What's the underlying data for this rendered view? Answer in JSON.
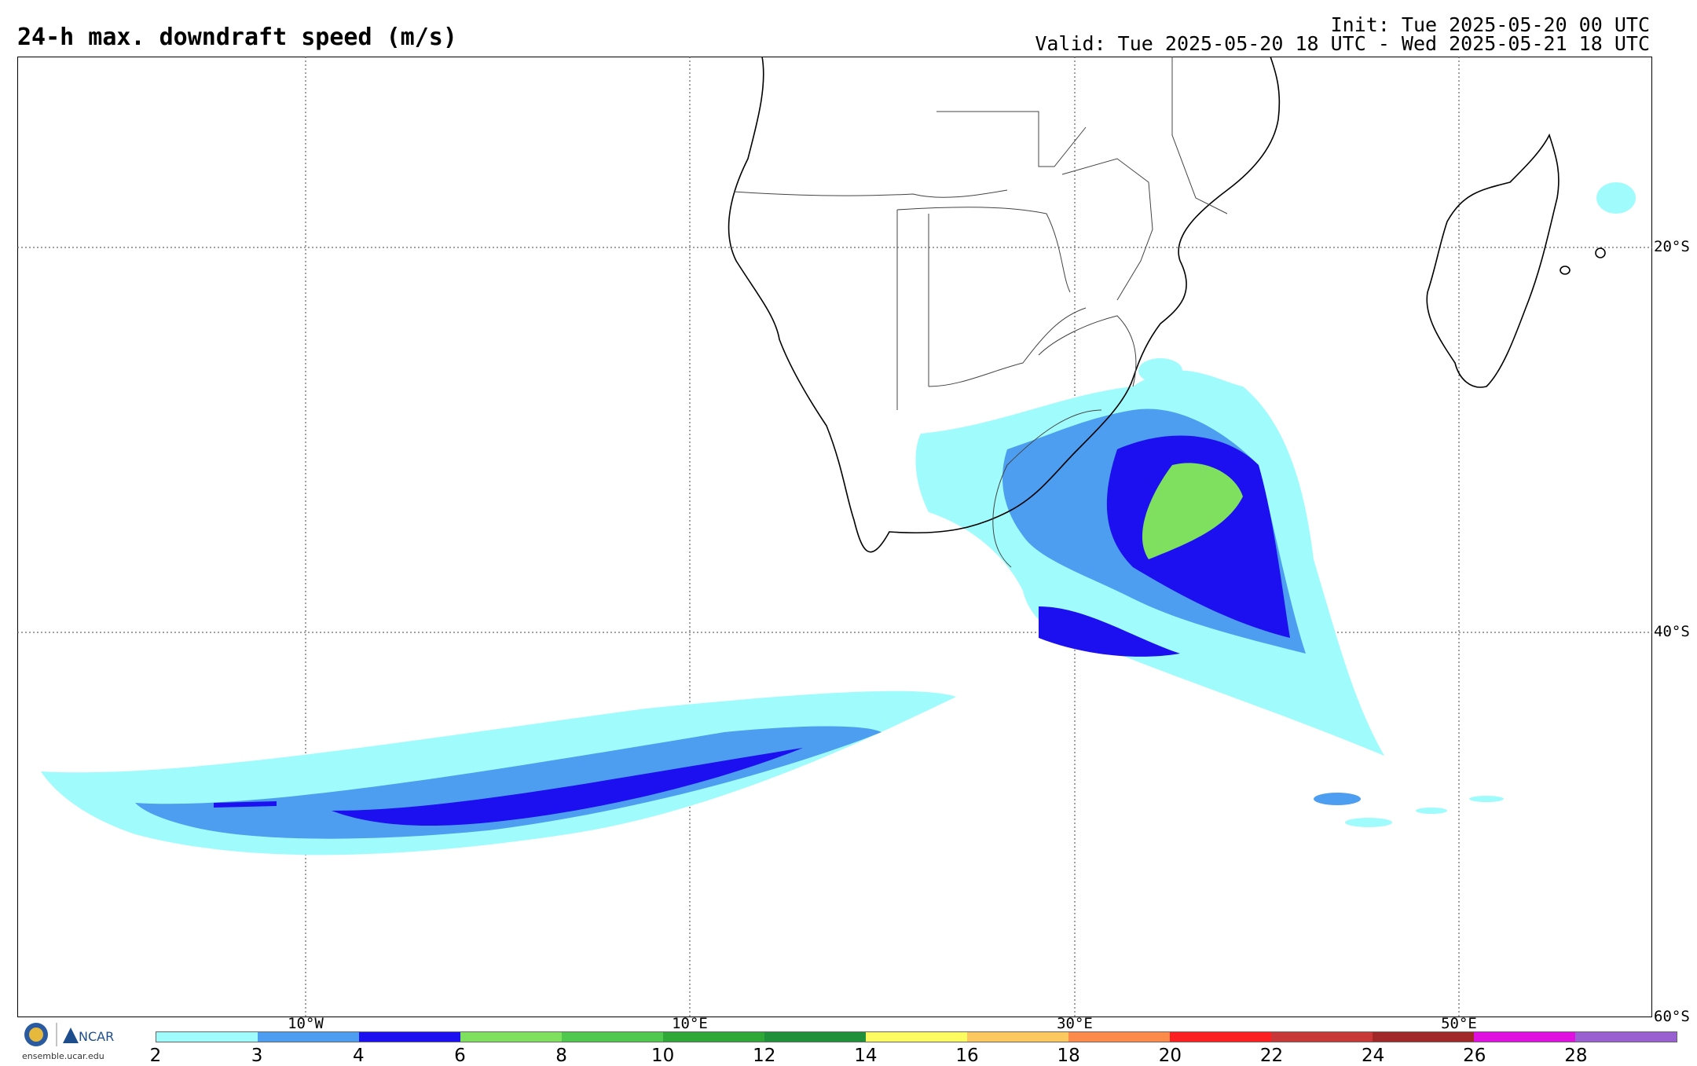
{
  "header": {
    "title": "24-h max. downdraft speed (m/s)",
    "init": "Init: Tue 2025-05-20 00 UTC",
    "valid": "Valid: Tue 2025-05-20 18 UTC - Wed 2025-05-21 18 UTC"
  },
  "axes": {
    "lat_labels": [
      "20°S",
      "40°S",
      "60°S"
    ],
    "lon_labels": [
      "10°W",
      "10°E",
      "30°E",
      "50°E"
    ]
  },
  "colorbar": {
    "ticks": [
      "2",
      "3",
      "4",
      "6",
      "8",
      "10",
      "12",
      "14",
      "16",
      "18",
      "20",
      "22",
      "24",
      "26",
      "28"
    ],
    "colors": [
      "#a0fcfc",
      "#4d9ef0",
      "#1c0ff0",
      "#7fe060",
      "#50c850",
      "#30a838",
      "#20903a",
      "#fcfc60",
      "#fcc860",
      "#fc8a4a",
      "#fc2020",
      "#c83838",
      "#a02828",
      "#e010e0",
      "#9860d0"
    ]
  },
  "branding": {
    "org1": "NSF",
    "org2": "NCAR",
    "site": "ensemble.ucar.edu"
  }
}
